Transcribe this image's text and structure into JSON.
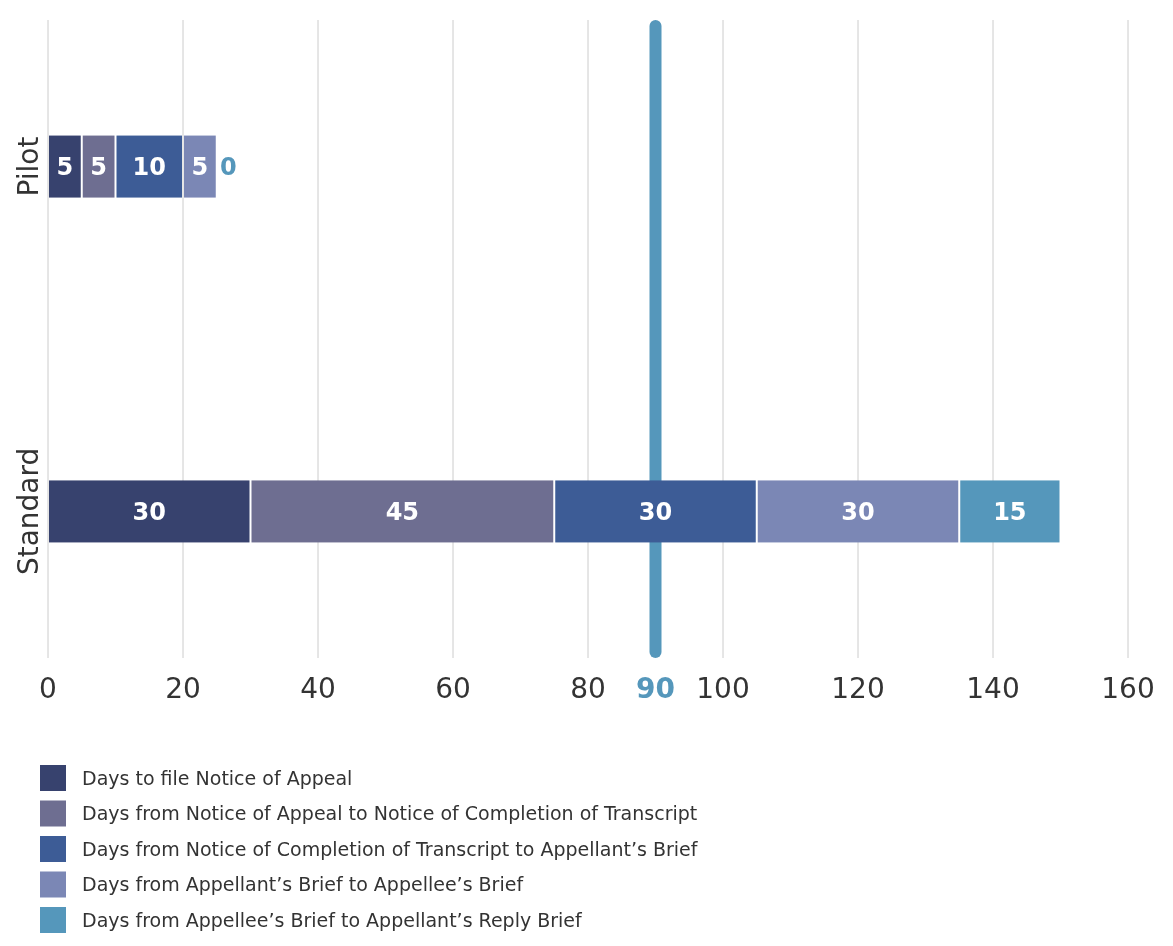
{
  "chart_data": {
    "type": "bar",
    "orientation": "horizontal",
    "stacked": true,
    "categories": [
      "Pilot",
      "Standard"
    ],
    "series": [
      {
        "name": "Days to file Notice of Appeal",
        "color": "#37426e",
        "values": [
          5,
          30
        ]
      },
      {
        "name": "Days from Notice of Appeal to Notice of Completion of Transcript",
        "color": "#6e6e91",
        "values": [
          5,
          45
        ]
      },
      {
        "name": "Days from Notice of Completion of Transcript to Appellant’s Brief",
        "color": "#3d5c96",
        "values": [
          10,
          30
        ]
      },
      {
        "name": "Days from Appellant’s Brief to Appellee’s Brief",
        "color": "#7b87b5",
        "values": [
          5,
          30
        ]
      },
      {
        "name": "Days from Appellee’s Brief to Appellant’s Reply Brief",
        "color": "#5597bb",
        "values": [
          0,
          15
        ]
      }
    ],
    "xlim": [
      0,
      160
    ],
    "xticks": [
      0,
      20,
      40,
      60,
      80,
      100,
      120,
      140,
      160
    ],
    "ref_lines": [
      {
        "axis": "x",
        "value": 90,
        "label": "90",
        "color": "#5597bb"
      }
    ],
    "grid": "x",
    "legend": "bottom",
    "data_labels": true
  }
}
